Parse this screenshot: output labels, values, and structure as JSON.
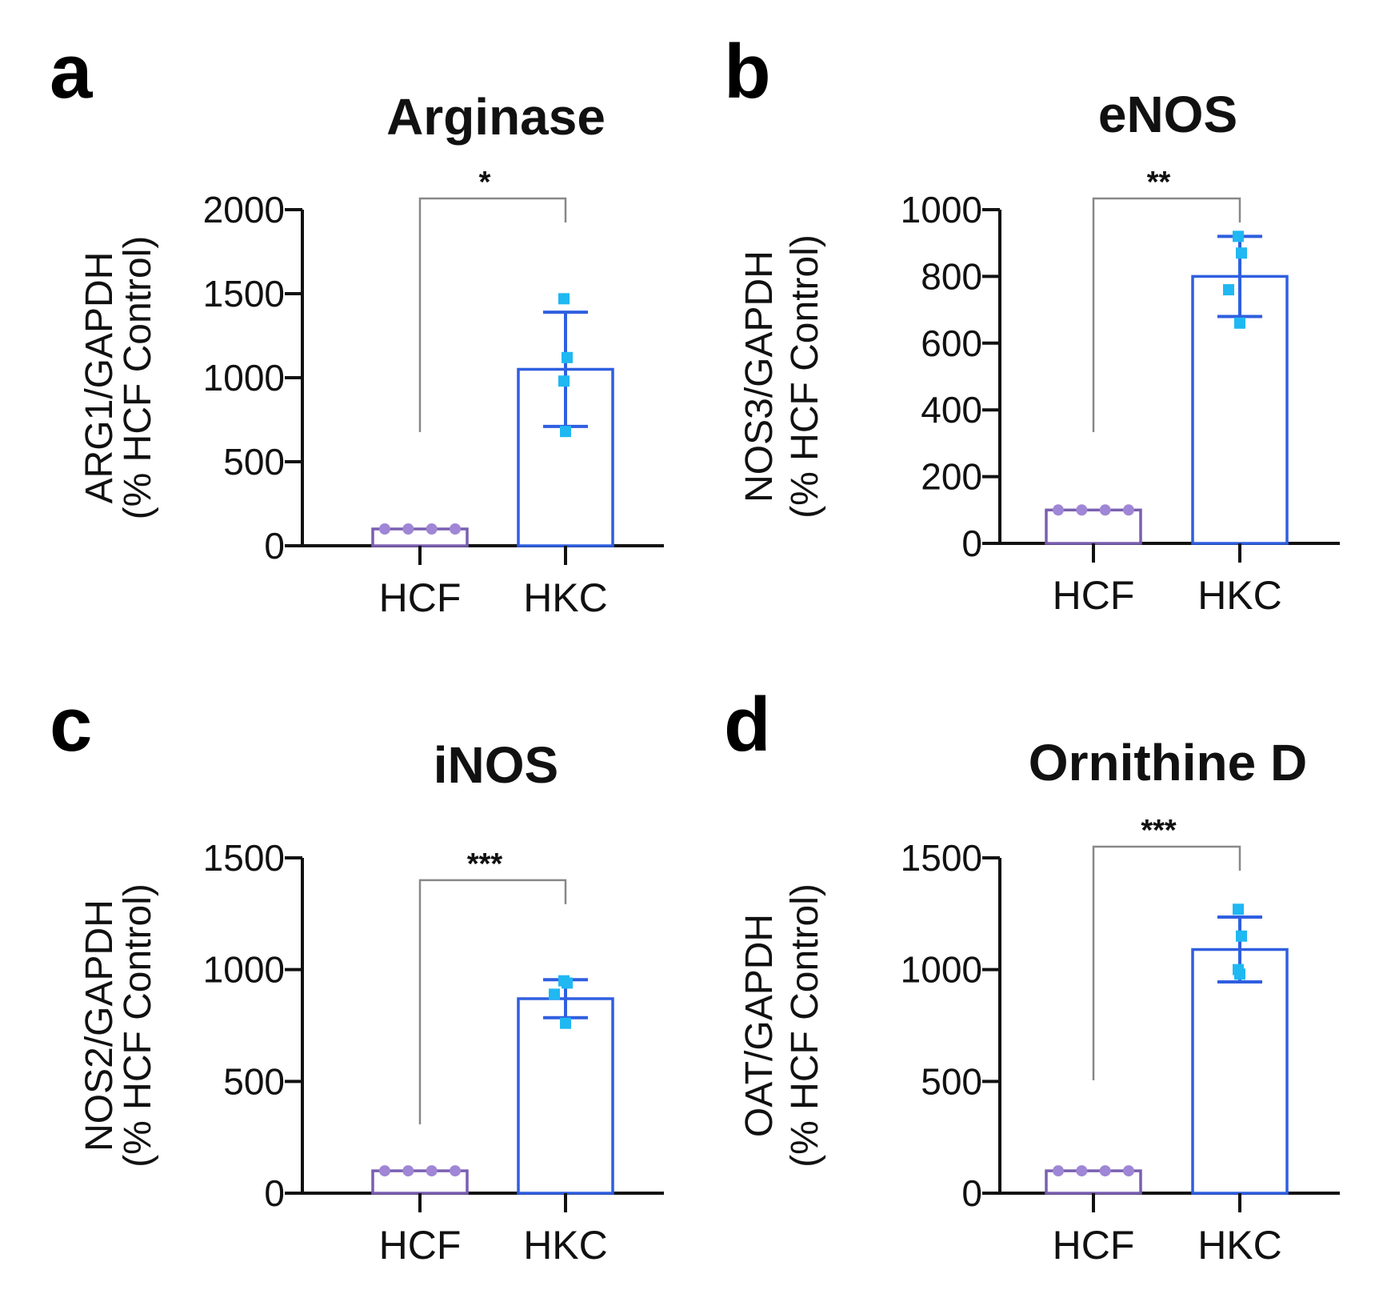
{
  "colors": {
    "hcf": "#7a5fb0",
    "hcf_point": "#9f86d6",
    "hkc": "#2f5fe0",
    "hkc_point": "#1fb8f2",
    "axis": "#111111",
    "bracket": "#888888"
  },
  "chart_data": [
    {
      "panel": "a",
      "type": "bar",
      "title": "Arginase",
      "ylabel_line1": "ARG1/GAPDH",
      "ylabel_line2": "(% HCF Control)",
      "categories": [
        "HCF",
        "HKC"
      ],
      "values": [
        100,
        1050
      ],
      "error": [
        0,
        340
      ],
      "points": [
        [
          100,
          100,
          100,
          100
        ],
        [
          1470,
          1120,
          980,
          680
        ]
      ],
      "ylim": [
        0,
        2000
      ],
      "yticks": [
        0,
        500,
        1000,
        1500,
        2000
      ],
      "significance": "*",
      "bracket_y": 2000
    },
    {
      "panel": "b",
      "type": "bar",
      "title": "eNOS",
      "ylabel_line1": "NOS3/GAPDH",
      "ylabel_line2": "(% HCF Control)",
      "categories": [
        "HCF",
        "HKC"
      ],
      "values": [
        100,
        800
      ],
      "error": [
        0,
        120
      ],
      "points": [
        [
          100,
          100,
          100,
          100
        ],
        [
          920,
          870,
          760,
          660
        ]
      ],
      "ylim": [
        0,
        1000
      ],
      "yticks": [
        0,
        200,
        400,
        600,
        800,
        1000
      ],
      "significance": "**",
      "bracket_y": 1000
    },
    {
      "panel": "c",
      "type": "bar",
      "title": "iNOS",
      "ylabel_line1": "NOS2/GAPDH",
      "ylabel_line2": "(% HCF Control)",
      "categories": [
        "HCF",
        "HKC"
      ],
      "values": [
        100,
        870
      ],
      "error": [
        0,
        85
      ],
      "points": [
        [
          100,
          100,
          100,
          100
        ],
        [
          950,
          940,
          890,
          760
        ]
      ],
      "ylim": [
        0,
        1500
      ],
      "yticks": [
        0,
        500,
        1000,
        1500
      ],
      "significance": "***",
      "bracket_y": 1350
    },
    {
      "panel": "d",
      "type": "bar",
      "title": "Ornithine D",
      "ylabel_line1": "OAT/GAPDH",
      "ylabel_line2": "(% HCF Control)",
      "categories": [
        "HCF",
        "HKC"
      ],
      "values": [
        100,
        1090
      ],
      "error": [
        0,
        145
      ],
      "points": [
        [
          100,
          100,
          100,
          100
        ],
        [
          1270,
          1150,
          1000,
          980
        ]
      ],
      "ylim": [
        0,
        1500
      ],
      "yticks": [
        0,
        500,
        1000,
        1500
      ],
      "significance": "***",
      "bracket_y": 1500
    }
  ]
}
